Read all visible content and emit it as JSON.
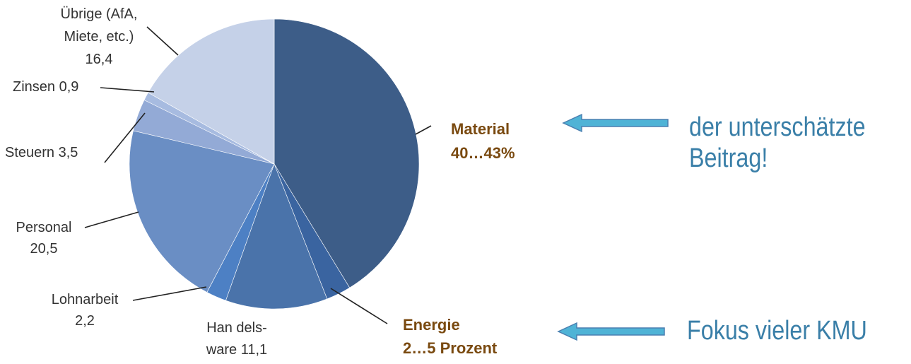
{
  "chart_data": {
    "type": "pie",
    "title": "",
    "slices": [
      {
        "label_lines": [
          "Material",
          "40…43%"
        ],
        "value": 40.3,
        "color": "#3d5d88",
        "emphasis": true
      },
      {
        "label_lines": [],
        "value": 2.7,
        "color": "#3a64a0"
      },
      {
        "label_lines": [
          "Han dels-",
          "ware 11,1"
        ],
        "value": 11.1,
        "color": "#4a73aa"
      },
      {
        "label_lines": [
          "Lohnarbeit",
          "2,2"
        ],
        "value": 2.2,
        "color": "#4d80c4"
      },
      {
        "label_lines": [
          "Personal",
          "20,5"
        ],
        "value": 20.5,
        "color": "#6a8ec4"
      },
      {
        "label_lines": [
          "Steuern 3,5"
        ],
        "value": 3.5,
        "color": "#93aad6"
      },
      {
        "label_lines": [
          "Zinsen 0,9"
        ],
        "value": 0.9,
        "color": "#a7bbe0"
      },
      {
        "label_lines": [
          "Übrige (AfA,",
          "Miete, etc.)",
          "16,4"
        ],
        "value": 16.4,
        "color": "#c5d1e8"
      }
    ],
    "callout": {
      "label_lines": [
        "Energie",
        "2…5 Prozent"
      ],
      "color": "#7a4a10"
    },
    "material_color": "#7a4a10",
    "label_color": "#333333"
  },
  "annotations": {
    "note_material": [
      "der unterschätzte",
      "Beitrag!"
    ],
    "note_energy": "Fokus vieler KMU",
    "note_color": "#3a7fa8",
    "arrow_fill": "#4fb3d6",
    "arrow_stroke": "#4a7fb0"
  }
}
